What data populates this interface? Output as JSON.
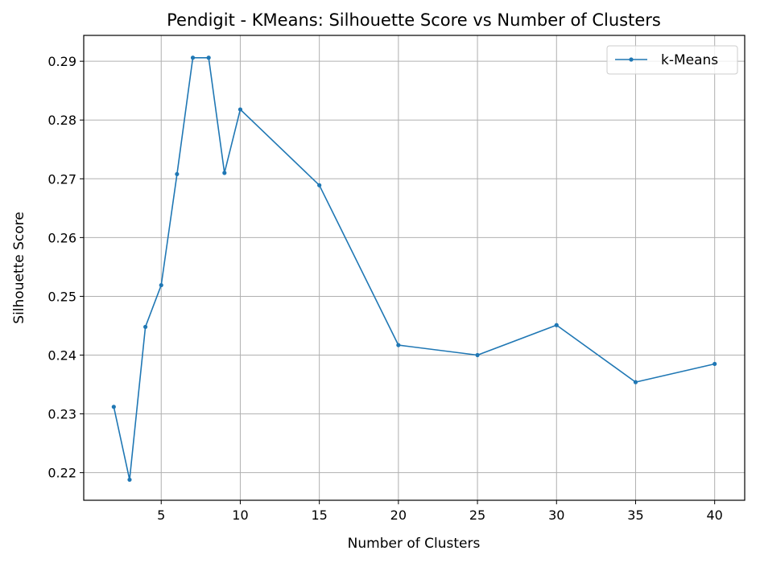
{
  "chart_data": {
    "type": "line",
    "title": "Pendigit - KMeans: Silhouette Score vs Number of Clusters",
    "xlabel": "Number of Clusters",
    "ylabel": "Silhouette Score",
    "xlim": [
      0.1,
      41.9
    ],
    "ylim": [
      0.2153,
      0.2944
    ],
    "xticks": [
      5,
      10,
      15,
      20,
      25,
      30,
      35,
      40
    ],
    "yticks": [
      0.22,
      0.23,
      0.24,
      0.25,
      0.26,
      0.27,
      0.28,
      0.29
    ],
    "xtick_labels": [
      "5",
      "10",
      "15",
      "20",
      "25",
      "30",
      "35",
      "40"
    ],
    "ytick_labels": [
      "0.22",
      "0.23",
      "0.24",
      "0.25",
      "0.26",
      "0.27",
      "0.28",
      "0.29"
    ],
    "grid": true,
    "legend_position": "top-right",
    "series": [
      {
        "name": "k-Means",
        "color": "#1f77b4",
        "marker": "circle",
        "x": [
          2,
          3,
          4,
          5,
          6,
          7,
          8,
          9,
          10,
          15,
          20,
          25,
          30,
          35,
          40
        ],
        "y": [
          0.2312,
          0.2188,
          0.2448,
          0.2519,
          0.2708,
          0.2906,
          0.2906,
          0.271,
          0.2818,
          0.2689,
          0.2417,
          0.24,
          0.2451,
          0.2354,
          0.2385
        ]
      }
    ]
  }
}
